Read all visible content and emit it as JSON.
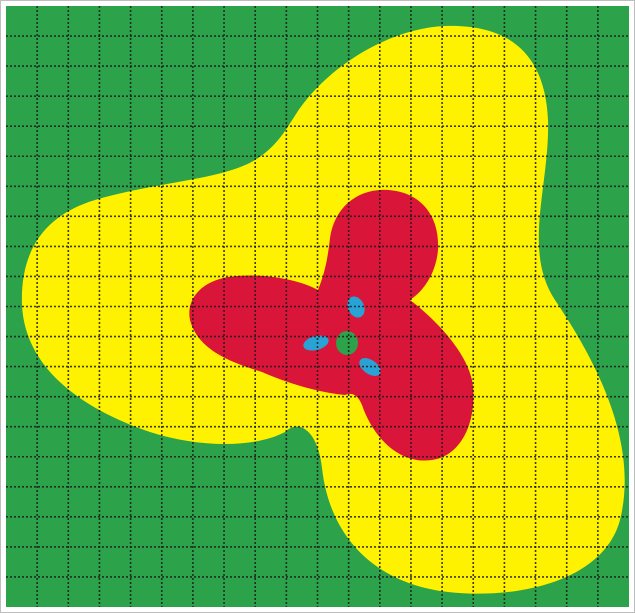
{
  "figure": {
    "grid": true,
    "grid_style": "dotted",
    "grid_rows": 20,
    "grid_cols": 20,
    "colors": {
      "background": "#2ca24a",
      "outer_region": "#fff200",
      "middle_region": "#d9153a",
      "inner_lobes": "#29a3d6",
      "center_core": "#2ca24a",
      "grid_line": "#1c1c1c",
      "border": "#bdbdbd"
    },
    "regions": [
      "outer_region",
      "middle_region",
      "inner_lobes",
      "center_core"
    ]
  }
}
